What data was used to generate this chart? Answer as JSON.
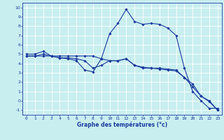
{
  "xlabel": "Graphe des températures (°c)",
  "bg_color": "#c8eef0",
  "line_color": "#1a3a9e",
  "grid_color": "#ffffff",
  "xlim": [
    -0.5,
    23.5
  ],
  "ylim": [
    -1.5,
    10.5
  ],
  "xticks": [
    0,
    1,
    2,
    3,
    4,
    5,
    6,
    7,
    8,
    9,
    10,
    11,
    12,
    13,
    14,
    15,
    16,
    17,
    18,
    19,
    20,
    21,
    22,
    23
  ],
  "yticks": [
    -1,
    0,
    1,
    2,
    3,
    4,
    5,
    6,
    7,
    8,
    9,
    10
  ],
  "hours": [
    0,
    1,
    2,
    3,
    4,
    5,
    6,
    7,
    8,
    9,
    10,
    11,
    12,
    13,
    14,
    15,
    16,
    17,
    18,
    19,
    20,
    21,
    22,
    23
  ],
  "line1": [
    5.0,
    5.0,
    5.3,
    4.8,
    4.6,
    4.5,
    4.3,
    3.3,
    3.1,
    4.5,
    7.2,
    8.3,
    9.8,
    8.5,
    8.2,
    8.3,
    8.2,
    7.8,
    7.0,
    3.5,
    1.0,
    0.0,
    -0.8,
    -0.8
  ],
  "line2": [
    4.8,
    4.8,
    4.8,
    4.8,
    4.8,
    4.8,
    4.8,
    4.8,
    4.8,
    4.5,
    4.3,
    4.3,
    4.5,
    3.8,
    3.6,
    3.5,
    3.4,
    3.3,
    3.2,
    2.5,
    1.8,
    0.5,
    -0.1,
    -1.0
  ],
  "line3": [
    4.8,
    4.8,
    5.0,
    4.8,
    4.6,
    4.6,
    4.5,
    4.3,
    3.5,
    3.8,
    4.3,
    4.3,
    4.5,
    3.8,
    3.5,
    3.5,
    3.5,
    3.4,
    3.3,
    2.5,
    1.5,
    0.5,
    0.0,
    -1.0
  ],
  "tick_fontsize": 4.5,
  "xlabel_fontsize": 5.5,
  "marker_size": 1.8,
  "line_width": 0.8
}
